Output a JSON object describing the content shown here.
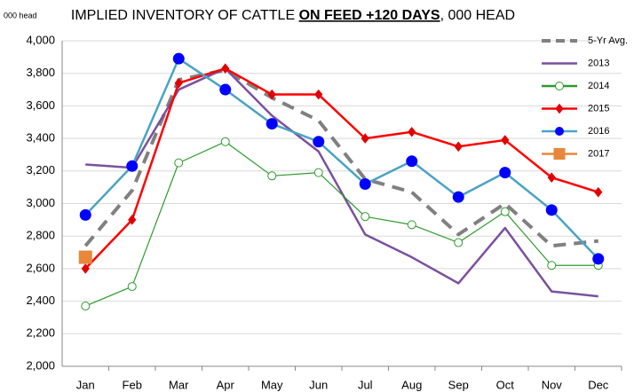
{
  "chart_data": {
    "type": "line",
    "title_parts": [
      "IMPLIED INVENTORY OF CATTLE ",
      "ON FEED +120 DAYS",
      ", 000 HEAD"
    ],
    "y_axis_label": "000 head",
    "categories": [
      "Jan",
      "Feb",
      "Mar",
      "Apr",
      "May",
      "Jun",
      "Jul",
      "Aug",
      "Sep",
      "Oct",
      "Nov",
      "Dec"
    ],
    "ylim": [
      2000,
      4000
    ],
    "yticks": [
      {
        "value": 2000,
        "label": "2,000"
      },
      {
        "value": 2200,
        "label": "2,200"
      },
      {
        "value": 2400,
        "label": "2,400"
      },
      {
        "value": 2600,
        "label": "2,600"
      },
      {
        "value": 2800,
        "label": "2,800"
      },
      {
        "value": 3000,
        "label": "3,000"
      },
      {
        "value": 3200,
        "label": "3,200"
      },
      {
        "value": 3400,
        "label": "3,400"
      },
      {
        "value": 3600,
        "label": "3,600"
      },
      {
        "value": 3800,
        "label": "3,800"
      },
      {
        "value": 4000,
        "label": "4,000"
      }
    ],
    "grid": true,
    "legend": "right",
    "series": [
      {
        "name": "5-Yr Avg.",
        "color": "#808080",
        "dashed": true,
        "marker": "none",
        "marker_color": "#808080",
        "values": [
          2740,
          3080,
          3760,
          3820,
          3650,
          3510,
          3150,
          3070,
          2810,
          3000,
          2740,
          2770
        ]
      },
      {
        "name": "2013",
        "color": "#7b509f",
        "marker": "none",
        "marker_color": "#7b509f",
        "values": [
          3240,
          3220,
          3700,
          3830,
          3540,
          3320,
          2810,
          2670,
          2510,
          2850,
          2460,
          2430
        ]
      },
      {
        "name": "2014",
        "color": "#2e9a2e",
        "marker": "open-circle",
        "marker_color": "#2e9a2e",
        "values": [
          2370,
          2490,
          3250,
          3380,
          3170,
          3190,
          2920,
          2870,
          2760,
          2950,
          2620,
          2620
        ]
      },
      {
        "name": "2015",
        "color": "#ff0000",
        "marker": "diamond",
        "marker_color": "#e00000",
        "values": [
          2600,
          2900,
          3740,
          3830,
          3670,
          3670,
          3400,
          3440,
          3350,
          3390,
          3160,
          3070
        ]
      },
      {
        "name": "2016",
        "color": "#4aa3c4",
        "marker": "circle",
        "marker_color": "#0000ff",
        "values": [
          2930,
          3230,
          3890,
          3700,
          3490,
          3380,
          3120,
          3260,
          3040,
          3190,
          2960,
          2660
        ]
      },
      {
        "name": "2017",
        "color": "#e8873a",
        "marker": "square",
        "marker_color": "#e8873a",
        "values": [
          2670,
          null,
          null,
          null,
          null,
          null,
          null,
          null,
          null,
          null,
          null,
          null
        ]
      }
    ]
  }
}
